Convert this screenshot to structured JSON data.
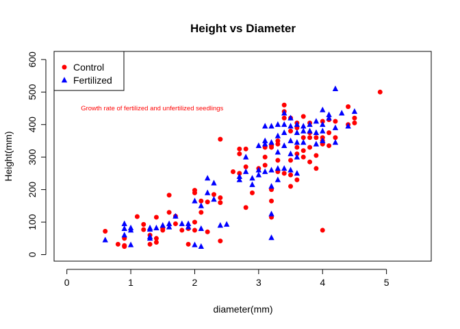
{
  "chart_data": {
    "type": "scatter",
    "title": "Height vs Diameter",
    "xlabel": "diameter(mm)",
    "ylabel": "Height(mm)",
    "xlim": [
      -0.2,
      5.7
    ],
    "ylim": [
      -20,
      625
    ],
    "xticks": [
      0,
      1,
      2,
      3,
      4,
      5
    ],
    "yticks": [
      0,
      100,
      200,
      300,
      400,
      500,
      600
    ],
    "grid": false,
    "legend_position": "top-left",
    "annotation": {
      "text": "Growth rate of fertilized and unfertilized seedlings",
      "x": 0.22,
      "y": 450,
      "color": "#ff0000"
    },
    "series": [
      {
        "name": "Control",
        "color": "#ff0000",
        "marker": "circle",
        "points": [
          [
            0.6,
            72
          ],
          [
            0.8,
            32
          ],
          [
            0.9,
            25
          ],
          [
            0.9,
            50
          ],
          [
            0.9,
            28
          ],
          [
            1.1,
            117
          ],
          [
            1.2,
            93
          ],
          [
            1.2,
            77
          ],
          [
            1.3,
            60
          ],
          [
            1.3,
            32
          ],
          [
            1.4,
            50
          ],
          [
            1.4,
            38
          ],
          [
            1.4,
            115
          ],
          [
            1.5,
            75
          ],
          [
            1.5,
            80
          ],
          [
            1.6,
            183
          ],
          [
            1.6,
            130
          ],
          [
            1.7,
            95
          ],
          [
            1.7,
            118
          ],
          [
            1.8,
            75
          ],
          [
            1.9,
            32
          ],
          [
            1.9,
            80
          ],
          [
            2.0,
            100
          ],
          [
            2.0,
            190
          ],
          [
            2.0,
            198
          ],
          [
            2.0,
            75
          ],
          [
            2.1,
            165
          ],
          [
            2.1,
            130
          ],
          [
            2.2,
            70
          ],
          [
            2.2,
            162
          ],
          [
            2.3,
            185
          ],
          [
            2.4,
            355
          ],
          [
            2.4,
            175
          ],
          [
            2.4,
            160
          ],
          [
            2.4,
            42
          ],
          [
            2.6,
            255
          ],
          [
            2.7,
            325
          ],
          [
            2.7,
            310
          ],
          [
            2.7,
            250
          ],
          [
            2.8,
            325
          ],
          [
            2.8,
            270
          ],
          [
            2.8,
            145
          ],
          [
            2.9,
            190
          ],
          [
            3.0,
            265
          ],
          [
            3.1,
            300
          ],
          [
            3.1,
            275
          ],
          [
            3.1,
            330
          ],
          [
            3.2,
            330
          ],
          [
            3.2,
            335
          ],
          [
            3.2,
            200
          ],
          [
            3.2,
            165
          ],
          [
            3.2,
            115
          ],
          [
            3.3,
            340
          ],
          [
            3.3,
            350
          ],
          [
            3.3,
            290
          ],
          [
            3.3,
            255
          ],
          [
            3.4,
            460
          ],
          [
            3.4,
            440
          ],
          [
            3.4,
            420
          ],
          [
            3.4,
            250
          ],
          [
            3.5,
            420
          ],
          [
            3.5,
            380
          ],
          [
            3.5,
            290
          ],
          [
            3.5,
            245
          ],
          [
            3.5,
            210
          ],
          [
            3.6,
            405
          ],
          [
            3.6,
            390
          ],
          [
            3.6,
            330
          ],
          [
            3.6,
            310
          ],
          [
            3.6,
            230
          ],
          [
            3.7,
            425
          ],
          [
            3.7,
            360
          ],
          [
            3.7,
            320
          ],
          [
            3.7,
            300
          ],
          [
            3.8,
            405
          ],
          [
            3.8,
            375
          ],
          [
            3.8,
            360
          ],
          [
            3.8,
            330
          ],
          [
            3.8,
            285
          ],
          [
            3.9,
            360
          ],
          [
            3.9,
            305
          ],
          [
            3.9,
            265
          ],
          [
            4.0,
            410
          ],
          [
            4.0,
            360
          ],
          [
            4.0,
            350
          ],
          [
            4.0,
            340
          ],
          [
            4.0,
            75
          ],
          [
            4.1,
            415
          ],
          [
            4.1,
            375
          ],
          [
            4.1,
            335
          ],
          [
            4.2,
            410
          ],
          [
            4.2,
            360
          ],
          [
            4.4,
            455
          ],
          [
            4.4,
            400
          ],
          [
            4.5,
            420
          ],
          [
            4.5,
            405
          ],
          [
            4.9,
            500
          ]
        ]
      },
      {
        "name": "Fertilized",
        "color": "#0000ff",
        "marker": "triangle",
        "points": [
          [
            0.6,
            45
          ],
          [
            0.9,
            95
          ],
          [
            0.9,
            80
          ],
          [
            0.9,
            60
          ],
          [
            1.0,
            82
          ],
          [
            1.0,
            75
          ],
          [
            1.0,
            30
          ],
          [
            1.3,
            82
          ],
          [
            1.3,
            78
          ],
          [
            1.3,
            55
          ],
          [
            1.3,
            50
          ],
          [
            1.4,
            82
          ],
          [
            1.5,
            90
          ],
          [
            1.6,
            95
          ],
          [
            1.6,
            85
          ],
          [
            1.7,
            118
          ],
          [
            1.8,
            95
          ],
          [
            1.9,
            95
          ],
          [
            1.9,
            85
          ],
          [
            2.0,
            165
          ],
          [
            2.0,
            30
          ],
          [
            2.1,
            150
          ],
          [
            2.1,
            80
          ],
          [
            2.1,
            25
          ],
          [
            2.2,
            235
          ],
          [
            2.2,
            190
          ],
          [
            2.3,
            220
          ],
          [
            2.3,
            170
          ],
          [
            2.4,
            90
          ],
          [
            2.5,
            93
          ],
          [
            2.7,
            240
          ],
          [
            2.7,
            230
          ],
          [
            2.8,
            300
          ],
          [
            2.8,
            255
          ],
          [
            2.9,
            235
          ],
          [
            2.9,
            215
          ],
          [
            3.0,
            335
          ],
          [
            3.0,
            260
          ],
          [
            3.0,
            245
          ],
          [
            3.1,
            395
          ],
          [
            3.1,
            350
          ],
          [
            3.1,
            340
          ],
          [
            3.1,
            255
          ],
          [
            3.2,
            395
          ],
          [
            3.2,
            345
          ],
          [
            3.2,
            260
          ],
          [
            3.2,
            210
          ],
          [
            3.2,
            125
          ],
          [
            3.2,
            52
          ],
          [
            3.3,
            400
          ],
          [
            3.3,
            365
          ],
          [
            3.3,
            315
          ],
          [
            3.3,
            265
          ],
          [
            3.3,
            230
          ],
          [
            3.4,
            435
          ],
          [
            3.4,
            400
          ],
          [
            3.4,
            375
          ],
          [
            3.4,
            335
          ],
          [
            3.4,
            265
          ],
          [
            3.5,
            420
          ],
          [
            3.5,
            395
          ],
          [
            3.5,
            350
          ],
          [
            3.5,
            310
          ],
          [
            3.5,
            260
          ],
          [
            3.6,
            400
          ],
          [
            3.6,
            375
          ],
          [
            3.6,
            345
          ],
          [
            3.6,
            300
          ],
          [
            3.6,
            250
          ],
          [
            3.7,
            395
          ],
          [
            3.7,
            380
          ],
          [
            3.7,
            345
          ],
          [
            3.8,
            400
          ],
          [
            3.8,
            380
          ],
          [
            3.9,
            410
          ],
          [
            3.9,
            375
          ],
          [
            3.9,
            340
          ],
          [
            4.0,
            445
          ],
          [
            4.0,
            400
          ],
          [
            4.0,
            380
          ],
          [
            4.0,
            350
          ],
          [
            4.1,
            430
          ],
          [
            4.1,
            420
          ],
          [
            4.2,
            510
          ],
          [
            4.2,
            390
          ],
          [
            4.2,
            345
          ],
          [
            4.3,
            435
          ],
          [
            4.4,
            395
          ],
          [
            4.5,
            440
          ]
        ]
      }
    ]
  }
}
